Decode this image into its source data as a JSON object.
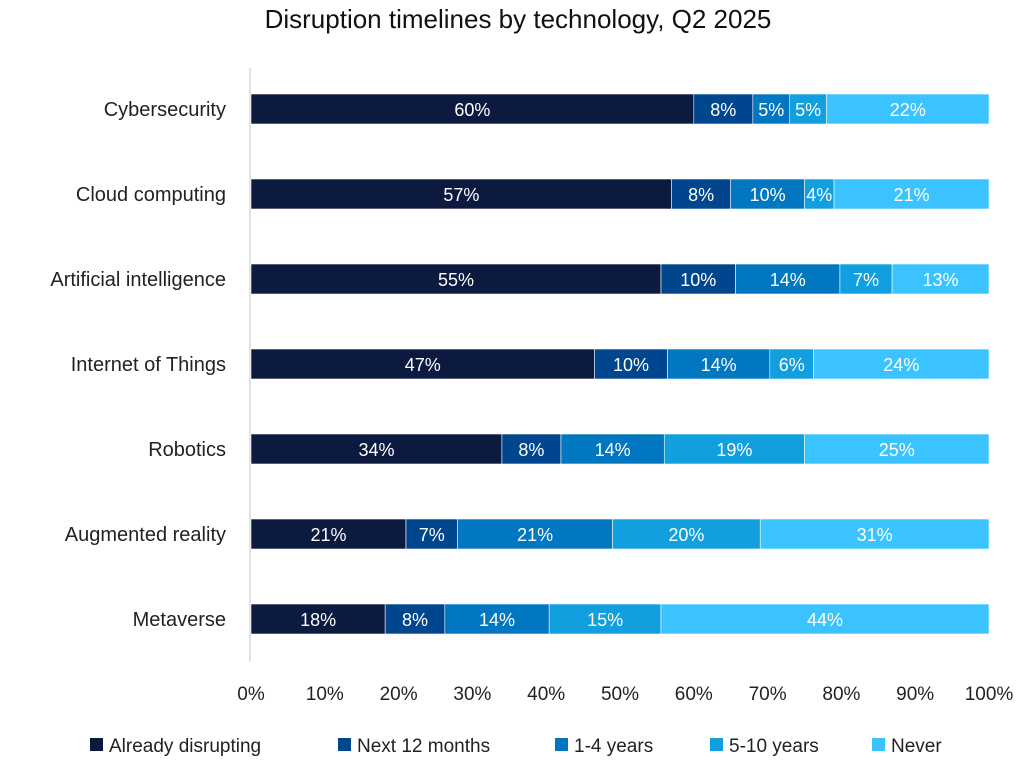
{
  "chart_data": {
    "type": "bar",
    "orientation": "horizontal",
    "stacked": true,
    "normalized": true,
    "title": "Disruption timelines by technology, Q2 2025",
    "xlabel": "",
    "ylabel": "",
    "xlim": [
      0,
      100
    ],
    "x_ticks": [
      "0%",
      "10%",
      "20%",
      "30%",
      "40%",
      "50%",
      "60%",
      "70%",
      "80%",
      "90%",
      "100%"
    ],
    "grid": false,
    "legend_position": "bottom",
    "categories": [
      "Cybersecurity",
      "Cloud computing",
      "Artificial intelligence",
      "Internet of Things",
      "Robotics",
      "Augmented reality",
      "Metaverse"
    ],
    "series": [
      {
        "name": "Already disrupting",
        "color": "#0d1a40",
        "values": [
          60,
          57,
          55,
          47,
          34,
          21,
          18
        ]
      },
      {
        "name": "Next 12 months",
        "color": "#00468f",
        "values": [
          8,
          8,
          10,
          10,
          8,
          7,
          8
        ]
      },
      {
        "name": "1-4 years",
        "color": "#0077c0",
        "values": [
          5,
          10,
          14,
          14,
          14,
          21,
          14
        ]
      },
      {
        "name": "5-10 years",
        "color": "#119fe0",
        "values": [
          5,
          4,
          7,
          6,
          19,
          20,
          15
        ]
      },
      {
        "name": "Never",
        "color": "#3ac3fe",
        "values": [
          22,
          21,
          13,
          24,
          25,
          31,
          44
        ]
      }
    ],
    "value_suffix": "%"
  }
}
